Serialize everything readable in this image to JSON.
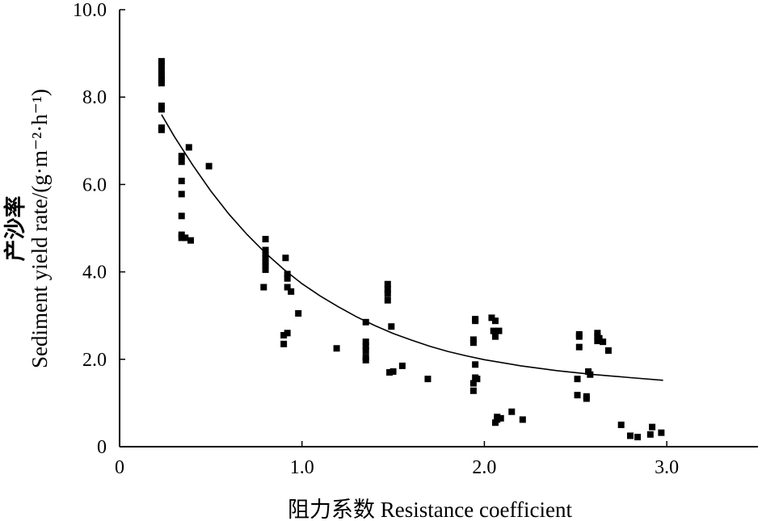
{
  "chart_data": {
    "type": "scatter",
    "title": "",
    "xlabel": "阻力系数 Resistance coefficient",
    "ylabel_cn": "产沙率",
    "ylabel_en": "Sediment yield rate/(g·m⁻²·h⁻¹)",
    "xlim": [
      0,
      3.5
    ],
    "ylim": [
      0,
      10
    ],
    "x_ticks": [
      0,
      1.0,
      2.0,
      3.0
    ],
    "x_tick_labels": [
      "0",
      "1.0",
      "2.0",
      "3.0"
    ],
    "y_ticks": [
      0,
      2,
      4,
      6,
      8,
      10
    ],
    "y_tick_labels": [
      "0",
      "2.0",
      "4.0",
      "6.0",
      "8.0",
      "10.0"
    ],
    "grid": false,
    "legend": "none",
    "series": [
      {
        "kind": "points",
        "marker": "square",
        "color": "#000000",
        "points": [
          [
            0.23,
            8.82
          ],
          [
            0.23,
            8.72
          ],
          [
            0.23,
            8.6
          ],
          [
            0.23,
            8.48
          ],
          [
            0.23,
            8.4
          ],
          [
            0.23,
            8.32
          ],
          [
            0.23,
            7.8
          ],
          [
            0.23,
            7.72
          ],
          [
            0.23,
            7.3
          ],
          [
            0.23,
            7.25
          ],
          [
            0.34,
            6.65
          ],
          [
            0.34,
            6.52
          ],
          [
            0.34,
            6.08
          ],
          [
            0.34,
            5.78
          ],
          [
            0.34,
            5.28
          ],
          [
            0.34,
            4.85
          ],
          [
            0.34,
            4.78
          ],
          [
            0.36,
            4.78
          ],
          [
            0.38,
            6.85
          ],
          [
            0.39,
            4.72
          ],
          [
            0.49,
            6.42
          ],
          [
            0.8,
            4.75
          ],
          [
            0.8,
            4.5
          ],
          [
            0.8,
            4.4
          ],
          [
            0.8,
            4.32
          ],
          [
            0.8,
            4.22
          ],
          [
            0.8,
            4.15
          ],
          [
            0.8,
            4.05
          ],
          [
            0.79,
            3.65
          ],
          [
            0.91,
            4.32
          ],
          [
            0.92,
            3.95
          ],
          [
            0.92,
            3.85
          ],
          [
            0.92,
            3.65
          ],
          [
            0.94,
            3.55
          ],
          [
            0.98,
            3.05
          ],
          [
            0.9,
            2.55
          ],
          [
            0.92,
            2.6
          ],
          [
            0.9,
            2.35
          ],
          [
            1.19,
            2.25
          ],
          [
            1.35,
            2.85
          ],
          [
            1.35,
            2.4
          ],
          [
            1.35,
            2.3
          ],
          [
            1.35,
            2.2
          ],
          [
            1.35,
            2.05
          ],
          [
            1.35,
            1.98
          ],
          [
            1.47,
            3.72
          ],
          [
            1.47,
            3.6
          ],
          [
            1.47,
            3.5
          ],
          [
            1.47,
            3.35
          ],
          [
            1.49,
            2.75
          ],
          [
            1.48,
            1.7
          ],
          [
            1.5,
            1.72
          ],
          [
            1.55,
            1.85
          ],
          [
            1.69,
            1.55
          ],
          [
            1.95,
            2.92
          ],
          [
            1.95,
            2.88
          ],
          [
            1.94,
            2.45
          ],
          [
            1.94,
            2.38
          ],
          [
            1.95,
            1.88
          ],
          [
            1.95,
            1.58
          ],
          [
            1.96,
            1.55
          ],
          [
            1.94,
            1.45
          ],
          [
            1.94,
            1.28
          ],
          [
            2.04,
            2.95
          ],
          [
            2.05,
            2.65
          ],
          [
            2.06,
            2.88
          ],
          [
            2.06,
            2.52
          ],
          [
            2.08,
            2.65
          ],
          [
            2.06,
            0.55
          ],
          [
            2.07,
            0.68
          ],
          [
            2.07,
            0.62
          ],
          [
            2.09,
            0.65
          ],
          [
            2.15,
            0.8
          ],
          [
            2.21,
            0.62
          ],
          [
            2.52,
            2.57
          ],
          [
            2.52,
            2.52
          ],
          [
            2.52,
            2.28
          ],
          [
            2.51,
            1.55
          ],
          [
            2.51,
            1.18
          ],
          [
            2.56,
            1.15
          ],
          [
            2.56,
            1.1
          ],
          [
            2.57,
            1.72
          ],
          [
            2.58,
            1.65
          ],
          [
            2.62,
            2.6
          ],
          [
            2.62,
            2.52
          ],
          [
            2.62,
            2.42
          ],
          [
            2.63,
            2.48
          ],
          [
            2.65,
            2.4
          ],
          [
            2.68,
            2.2
          ],
          [
            2.75,
            0.5
          ],
          [
            2.8,
            0.25
          ],
          [
            2.84,
            0.22
          ],
          [
            2.91,
            0.28
          ],
          [
            2.92,
            0.45
          ],
          [
            2.97,
            0.32
          ]
        ]
      },
      {
        "kind": "fitted-curve",
        "color": "#000000",
        "points": [
          [
            0.23,
            7.6
          ],
          [
            0.3,
            7.1
          ],
          [
            0.4,
            6.45
          ],
          [
            0.5,
            5.85
          ],
          [
            0.6,
            5.32
          ],
          [
            0.7,
            4.85
          ],
          [
            0.8,
            4.43
          ],
          [
            0.9,
            4.06
          ],
          [
            1.0,
            3.73
          ],
          [
            1.1,
            3.45
          ],
          [
            1.2,
            3.2
          ],
          [
            1.3,
            2.97
          ],
          [
            1.4,
            2.77
          ],
          [
            1.5,
            2.59
          ],
          [
            1.6,
            2.44
          ],
          [
            1.7,
            2.3
          ],
          [
            1.8,
            2.18
          ],
          [
            1.9,
            2.08
          ],
          [
            2.0,
            1.99
          ],
          [
            2.2,
            1.85
          ],
          [
            2.4,
            1.74
          ],
          [
            2.6,
            1.65
          ],
          [
            2.8,
            1.58
          ],
          [
            2.98,
            1.52
          ]
        ]
      }
    ]
  }
}
